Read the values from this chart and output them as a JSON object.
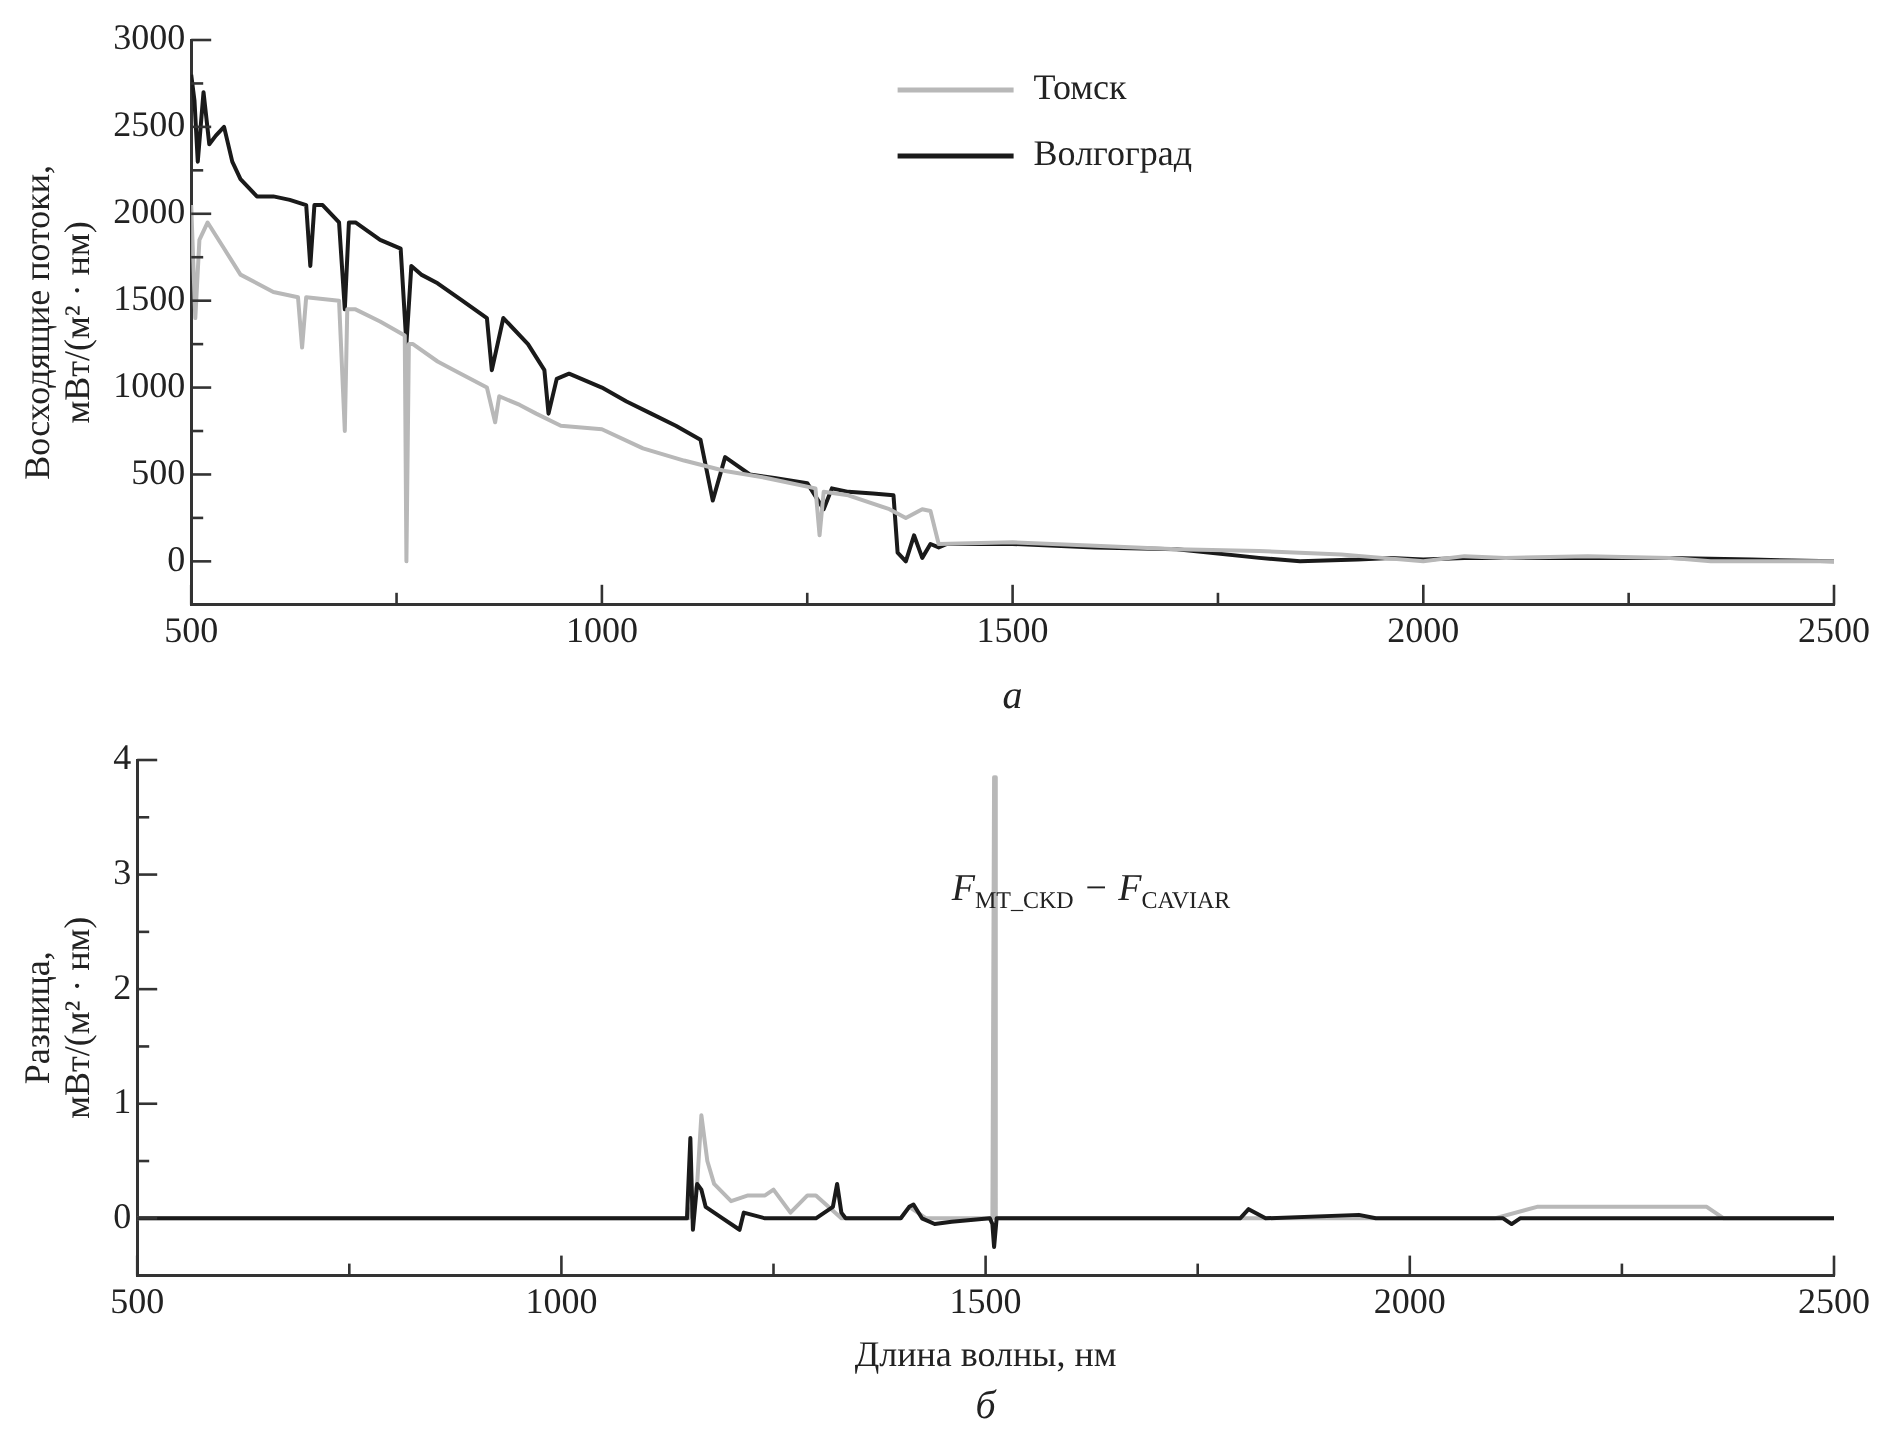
{
  "chart_data": [
    {
      "type": "line",
      "ylabel": "Восходящие потоки,\nмВт/(м² · нм)",
      "legend": "top right",
      "annotations": [
        "а"
      ],
      "xlim": [
        500,
        2500
      ],
      "xticks": [
        500,
        {
          "value": 750,
          "label": null
        },
        1000,
        {
          "value": 1250,
          "label": null
        },
        1500,
        {
          "value": 1750,
          "label": null
        },
        2000,
        {
          "value": 2250,
          "label": null
        },
        2500
      ],
      "ylim": [
        -250,
        3000
      ],
      "yticks": [
        0,
        {
          "value": 250,
          "label": null
        },
        500,
        {
          "value": 750,
          "label": null
        },
        1000,
        {
          "value": 1250,
          "label": null
        },
        1500,
        {
          "value": 1750,
          "label": null
        },
        2000,
        {
          "value": 2250,
          "label": null
        },
        2500,
        {
          "value": 2750,
          "label": null
        },
        3000
      ],
      "series": [
        {
          "name": "Волгоград",
          "color": "#1a1a1a",
          "x": [
            500,
            504,
            508,
            515,
            522,
            530,
            540,
            550,
            560,
            580,
            600,
            620,
            640,
            645,
            650,
            660,
            680,
            687,
            692,
            700,
            730,
            755,
            762,
            768,
            780,
            800,
            830,
            860,
            866,
            880,
            910,
            930,
            935,
            945,
            960,
            1000,
            1030,
            1060,
            1090,
            1120,
            1135,
            1150,
            1180,
            1210,
            1250,
            1270,
            1280,
            1300,
            1330,
            1355,
            1360,
            1370,
            1380,
            1390,
            1400,
            1410,
            1420,
            1500,
            1600,
            1700,
            1800,
            1850,
            1920,
            1960,
            2000,
            2050,
            2100,
            2200,
            2300,
            2400,
            2500
          ],
          "values": [
            2800,
            2650,
            2300,
            2700,
            2400,
            2450,
            2500,
            2300,
            2200,
            2100,
            2100,
            2080,
            2050,
            1700,
            2050,
            2050,
            1950,
            1450,
            1950,
            1950,
            1850,
            1800,
            1250,
            1700,
            1650,
            1600,
            1500,
            1400,
            1100,
            1400,
            1250,
            1100,
            850,
            1050,
            1080,
            1000,
            920,
            850,
            780,
            700,
            350,
            600,
            500,
            480,
            450,
            300,
            420,
            400,
            390,
            380,
            50,
            0,
            150,
            20,
            100,
            80,
            100,
            100,
            80,
            70,
            20,
            0,
            10,
            20,
            10,
            20,
            20,
            20,
            20,
            10,
            0
          ]
        },
        {
          "name": "Томск",
          "color": "#b8b8b8",
          "x": [
            500,
            505,
            510,
            520,
            540,
            560,
            600,
            630,
            635,
            640,
            680,
            687,
            690,
            700,
            730,
            760,
            762,
            765,
            770,
            800,
            820,
            860,
            870,
            875,
            900,
            920,
            950,
            1000,
            1050,
            1100,
            1150,
            1200,
            1260,
            1265,
            1270,
            1300,
            1350,
            1370,
            1390,
            1400,
            1410,
            1500,
            1600,
            1700,
            1800,
            1900,
            1950,
            2000,
            2050,
            2100,
            2200,
            2300,
            2350,
            2500
          ],
          "values": [
            2050,
            1400,
            1850,
            1950,
            1800,
            1650,
            1550,
            1520,
            1230,
            1520,
            1500,
            750,
            1450,
            1450,
            1380,
            1300,
            0,
            1250,
            1250,
            1150,
            1100,
            1000,
            800,
            950,
            900,
            850,
            780,
            760,
            650,
            580,
            520,
            480,
            420,
            150,
            400,
            380,
            300,
            250,
            300,
            290,
            100,
            110,
            90,
            70,
            60,
            40,
            20,
            0,
            30,
            20,
            30,
            20,
            0,
            0
          ]
        }
      ]
    },
    {
      "type": "line",
      "xlabel": "Длина волны, нм",
      "ylabel": "Разница,\nмВт/(м² · нм)",
      "annotations": [
        "F$_{MT_CKD}$ − F$_{CAVIAR}$",
        "б"
      ],
      "xlim": [
        500,
        2500
      ],
      "xticks": [
        500,
        {
          "value": 750,
          "label": null
        },
        1000,
        {
          "value": 1250,
          "label": null
        },
        1500,
        {
          "value": 1750,
          "label": null
        },
        2000,
        {
          "value": 2250,
          "label": null
        },
        2500
      ],
      "ylim": [
        -0.5,
        4
      ],
      "yticks": [
        0,
        {
          "value": 0.5,
          "label": null
        },
        1,
        {
          "value": 1.5,
          "label": null
        },
        2,
        {
          "value": 2.5,
          "label": null
        },
        3,
        {
          "value": 3.5,
          "label": null
        },
        4
      ],
      "series": [
        {
          "color": "#b8b8b8",
          "x": [
            500,
            1150,
            1160,
            1165,
            1172,
            1180,
            1200,
            1220,
            1240,
            1250,
            1270,
            1290,
            1300,
            1330,
            1400,
            1410,
            1430,
            1500,
            1508,
            1510,
            1512,
            1520,
            2100,
            2150,
            2250,
            2350,
            2370,
            2500
          ],
          "values": [
            0,
            0,
            0.3,
            0.9,
            0.5,
            0.3,
            0.15,
            0.2,
            0.2,
            0.25,
            0.05,
            0.2,
            0.2,
            0,
            0,
            0.1,
            0,
            0,
            0,
            3.85,
            0,
            0,
            0,
            0.1,
            0.1,
            0.1,
            0,
            0
          ]
        },
        {
          "color": "#1a1a1a",
          "x": [
            500,
            1148,
            1152,
            1155,
            1160,
            1165,
            1170,
            1190,
            1210,
            1215,
            1240,
            1300,
            1320,
            1325,
            1330,
            1335,
            1400,
            1410,
            1415,
            1425,
            1440,
            1460,
            1505,
            1508,
            1510,
            1513,
            1800,
            1810,
            1830,
            1940,
            1960,
            2110,
            2120,
            2130,
            2500
          ],
          "values": [
            0,
            0,
            0.7,
            -0.1,
            0.3,
            0.25,
            0.1,
            0,
            -0.1,
            0.05,
            0,
            0,
            0.1,
            0.3,
            0.05,
            0,
            0,
            0.1,
            0.12,
            0,
            -0.05,
            -0.03,
            0,
            -0.05,
            -0.25,
            0,
            0,
            0.08,
            0,
            0.03,
            0,
            0,
            -0.05,
            0,
            0
          ]
        }
      ]
    }
  ]
}
